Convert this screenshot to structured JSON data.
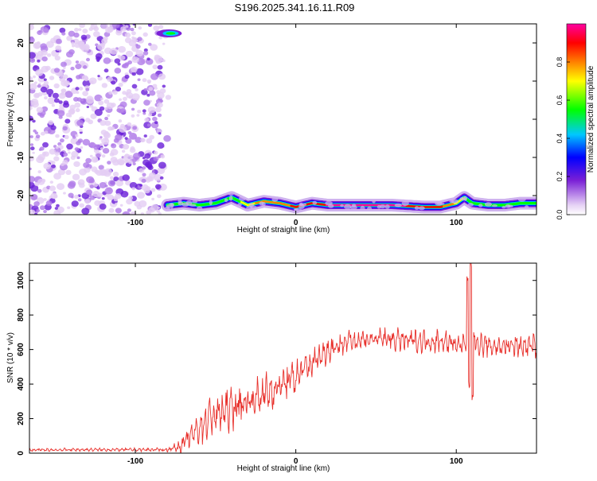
{
  "page_title": "S196.2025.341.16.11.R09",
  "chart_data": [
    {
      "type": "heatmap",
      "xlabel": "Height of straight line (km)",
      "ylabel": "Frequency (Hz)",
      "xlim": [
        -166,
        150
      ],
      "ylim": [
        -25,
        25
      ],
      "xticks": [
        -100,
        0,
        100
      ],
      "yticks": [
        -20,
        -10,
        0,
        10,
        20
      ],
      "xtick_labels": [
        "-100",
        "0",
        "100"
      ],
      "ytick_labels": [
        "-20",
        "-10",
        "0",
        "10",
        "20"
      ],
      "colorbar": {
        "label": "Normalized spectral amplitude",
        "range": [
          0,
          1
        ],
        "ticks": [
          0.0,
          0.2,
          0.4,
          0.6,
          0.8
        ],
        "tick_labels": [
          "0.0",
          "0.2",
          "0.4",
          "0.6",
          "0.8"
        ],
        "colormap": [
          "#ffffff",
          "#e6d2f5",
          "#7a1fd6",
          "#0000ff",
          "#00c8ff",
          "#00ff00",
          "#ffff00",
          "#ff8000",
          "#ff0000",
          "#ff00a0"
        ]
      },
      "noise_region": {
        "x_range": [
          -166,
          -82
        ],
        "y_range": [
          -25,
          25
        ]
      },
      "ridge": {
        "x": [
          -80,
          -70,
          -60,
          -50,
          -40,
          -35,
          -30,
          -20,
          -10,
          0,
          10,
          20,
          40,
          60,
          80,
          90,
          100,
          105,
          110,
          120,
          130,
          140,
          150
        ],
        "y": [
          -22.5,
          -22.0,
          -22.5,
          -22.0,
          -20.5,
          -21.5,
          -22.5,
          -21.5,
          -22.0,
          -23.0,
          -22.0,
          -22.5,
          -22.5,
          -22.5,
          -23.0,
          -23.0,
          -22.0,
          -20.5,
          -22.0,
          -22.5,
          -22.5,
          -22.0,
          -22.0
        ],
        "amplitude": [
          0.3,
          0.45,
          0.5,
          0.6,
          0.55,
          0.6,
          0.7,
          0.75,
          0.8,
          0.85,
          0.9,
          0.95,
          0.98,
          0.98,
          0.9,
          0.85,
          0.7,
          0.6,
          0.55,
          0.5,
          0.5,
          0.5,
          0.5
        ]
      },
      "hotspot": {
        "x": -78,
        "y": 22.5,
        "amplitude": 0.5
      }
    },
    {
      "type": "line",
      "xlabel": "Height of straight line (km)",
      "ylabel": "SNR (10 * v/v)",
      "xlim": [
        -166,
        150
      ],
      "ylim": [
        0,
        1100
      ],
      "xticks": [
        -100,
        0,
        100
      ],
      "yticks": [
        0,
        200,
        400,
        600,
        800,
        1000
      ],
      "xtick_labels": [
        "-100",
        "0",
        "100"
      ],
      "ytick_labels": [
        "0",
        "200",
        "400",
        "600",
        "800",
        "1000"
      ],
      "series": [
        {
          "name": "SNR",
          "color": "#e8302b",
          "x": [
            -166,
            -140,
            -110,
            -80,
            -72,
            -65,
            -60,
            -55,
            -50,
            -40,
            -30,
            -20,
            -10,
            0,
            10,
            20,
            25,
            30,
            40,
            50,
            60,
            70,
            80,
            90,
            100,
            105,
            110,
            115,
            120,
            130,
            140,
            150
          ],
          "y": [
            18,
            20,
            20,
            20,
            40,
            100,
            150,
            200,
            220,
            260,
            300,
            340,
            390,
            440,
            520,
            600,
            620,
            640,
            660,
            660,
            660,
            650,
            650,
            650,
            630,
            620,
            620,
            630,
            620,
            620,
            620,
            620
          ],
          "amplitude": [
            8,
            8,
            8,
            10,
            30,
            60,
            90,
            110,
            110,
            110,
            110,
            110,
            110,
            100,
            80,
            70,
            70,
            60,
            60,
            60,
            60,
            60,
            60,
            60,
            60,
            60,
            60,
            60,
            60,
            60,
            60,
            60
          ]
        }
      ],
      "spike": {
        "x": [
          107,
          108,
          109,
          110,
          111
        ],
        "y": [
          1020,
          400,
          1090,
          330,
          700
        ]
      }
    }
  ]
}
